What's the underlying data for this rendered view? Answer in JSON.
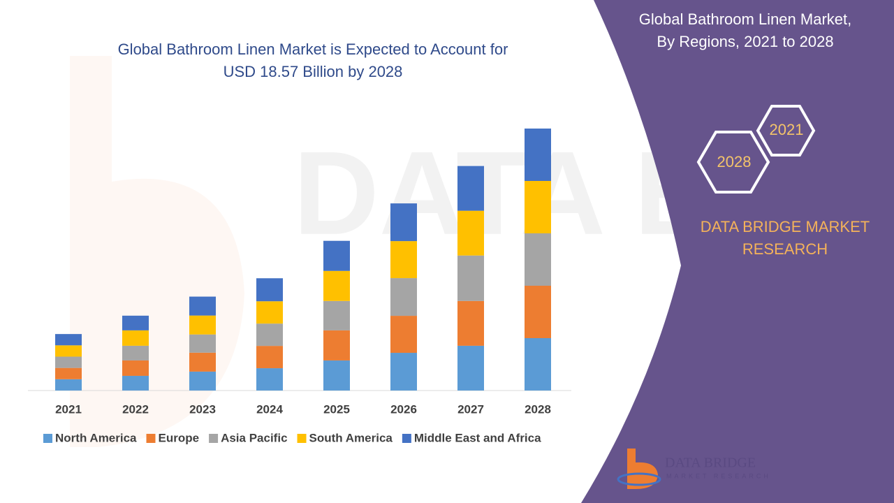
{
  "chart_data": {
    "type": "stacked-bar",
    "title": [
      "Global Bathroom Linen Market is Expected to Account for",
      "USD 18.57 Billion by 2028"
    ],
    "categories": [
      "2021",
      "2022",
      "2023",
      "2024",
      "2025",
      "2026",
      "2027",
      "2028"
    ],
    "series": [
      {
        "name": "North America",
        "color": "#5b9bd5",
        "values": [
          0.8,
          1.04,
          1.34,
          1.58,
          2.13,
          2.67,
          3.17,
          3.71
        ]
      },
      {
        "name": "Europe",
        "color": "#ed7d31",
        "values": [
          0.8,
          1.09,
          1.34,
          1.58,
          2.13,
          2.62,
          3.17,
          3.71
        ]
      },
      {
        "name": "Asia Pacific",
        "color": "#a5a5a5",
        "values": [
          0.8,
          1.04,
          1.29,
          1.58,
          2.08,
          2.67,
          3.22,
          3.71
        ]
      },
      {
        "name": "South America",
        "color": "#ffc000",
        "values": [
          0.8,
          1.09,
          1.34,
          1.58,
          2.13,
          2.62,
          3.17,
          3.71
        ]
      },
      {
        "name": "Middle East and Africa",
        "color": "#4472c4",
        "values": [
          0.8,
          1.04,
          1.34,
          1.63,
          2.13,
          2.67,
          3.17,
          3.71
        ]
      }
    ]
  },
  "panel": {
    "title": [
      "Global Bathroom Linen Market,",
      "By Regions,  2021 to 2028"
    ],
    "hex_top": "2021",
    "hex_bottom": "2028",
    "brand": [
      "DATA BRIDGE MARKET",
      "RESEARCH"
    ],
    "logo": [
      "DATA BRIDGE",
      "MARKET RESEARCH"
    ]
  }
}
